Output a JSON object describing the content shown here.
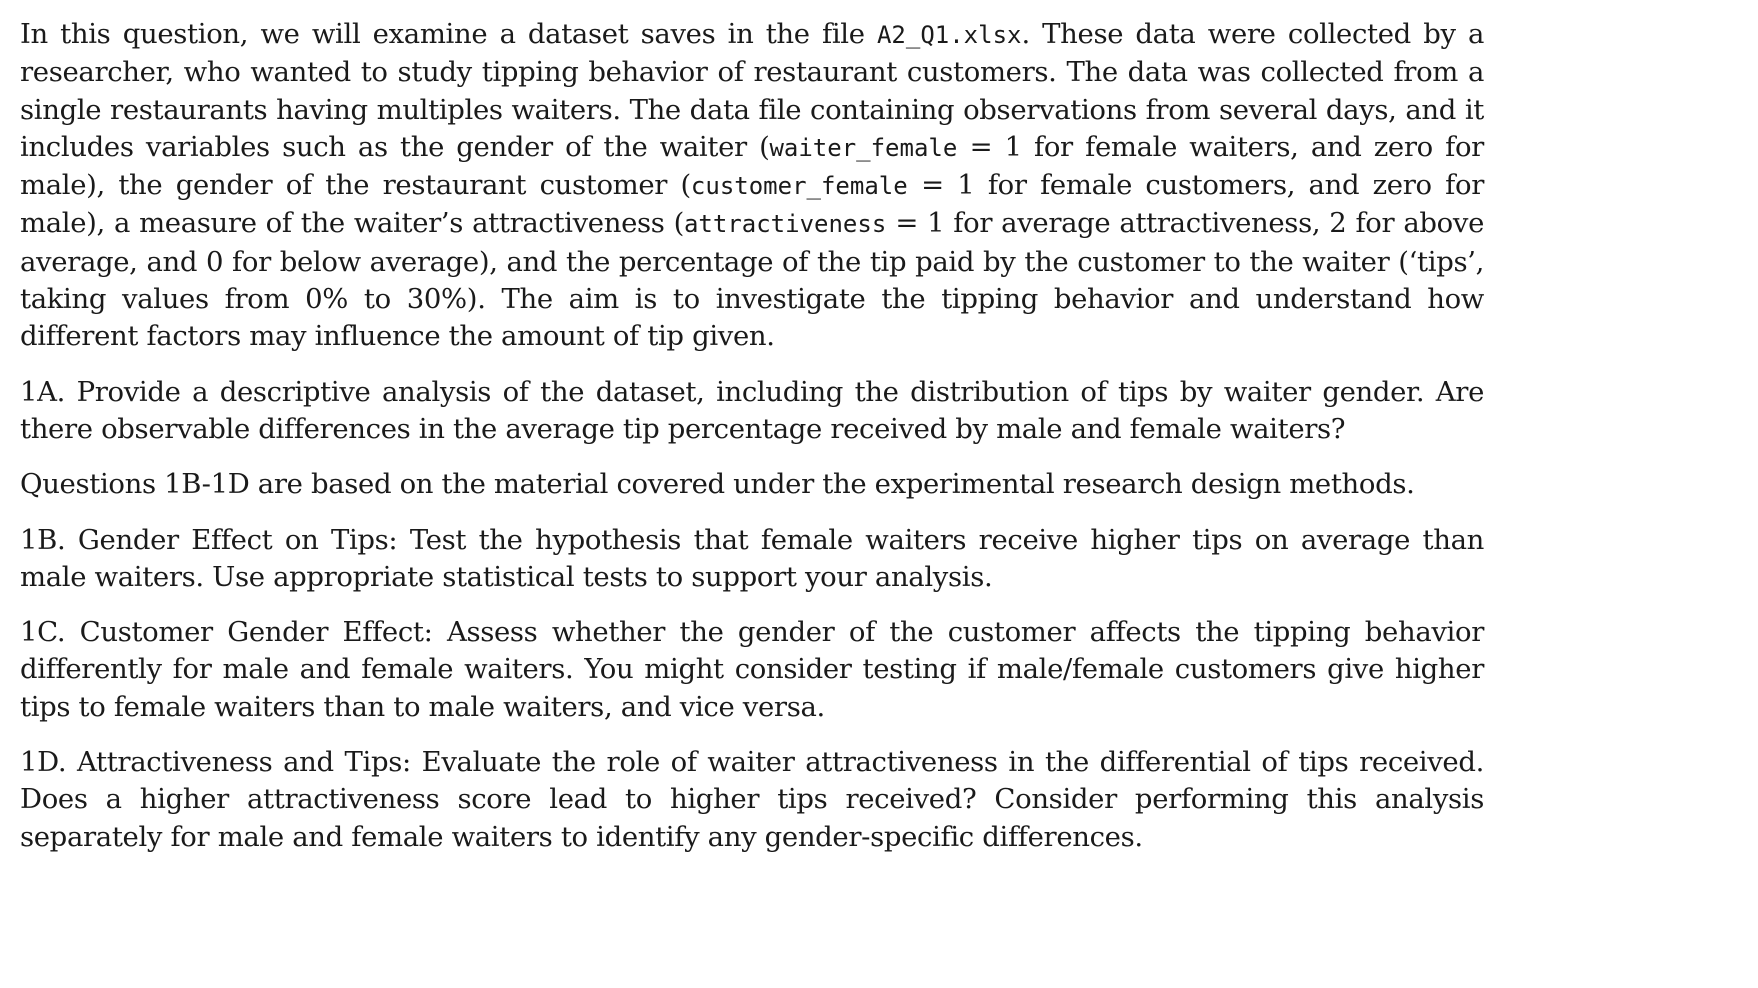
{
  "intro": {
    "t1": "In this question, we will examine a dataset saves in the file ",
    "file": "A2_Q1.xlsx",
    "t2": ". These data were collected by a researcher, who wanted to study tipping behavior of restaurant customers. The data was collected from a single restaurants having multiples waiters. The data file containing observations from several days, and it includes variables such as the gender of the waiter (",
    "var_waiter": "waiter_female",
    "t3": " = 1 for female waiters, and zero for male), the gender of the restaurant customer (",
    "var_customer": "customer_female",
    "t4": " = 1 for female customers, and zero for male), a measure of the waiter’s attractiveness (",
    "var_attract": "attractiveness",
    "t5": " = 1 for average attractiveness, 2 for above average, and 0 for below average), and the percentage of the tip paid by the customer to the waiter (‘tips’, taking values from 0% to 30%). The aim is to investigate the tipping behavior and understand how different factors may influence the amount of tip given."
  },
  "q1a": "1A. Provide a descriptive analysis of the dataset, including the distribution of tips by waiter gender. Are there observable differences in the average tip percentage received by male and female waiters?",
  "note": "Questions 1B-1D are based on the material covered under the experimental research design methods.",
  "q1b": "1B. Gender Effect on Tips: Test the hypothesis that female waiters receive higher tips on average than male waiters. Use appropriate statistical tests to support your analysis.",
  "q1c": "1C. Customer Gender Effect: Assess whether the gender of the customer affects the tipping behavior differently for male and female waiters. You might consider testing if male/female customers give higher tips to female waiters than to male waiters, and vice versa.",
  "q1d": "1D. Attractiveness and Tips: Evaluate the role of waiter attractiveness in the differential of tips received. Does a higher attractiveness score lead to higher tips received? Consider performing this analysis separately for male and female waiters to identify any gender-specific differences."
}
